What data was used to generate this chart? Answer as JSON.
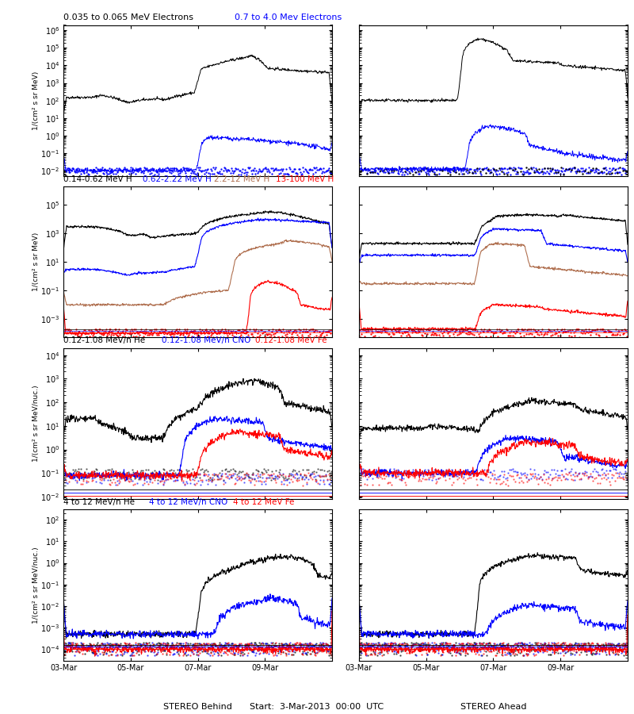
{
  "title_row0": [
    "0.035 to 0.065 MeV Electrons",
    "0.7 to 4.0 Mev Electrons"
  ],
  "title_row0_colors": [
    "black",
    "blue"
  ],
  "title_row1": [
    "0.14-0.62 MeV H",
    "0.62-2.22 MeV H",
    "2.2-12 MeV H",
    "13-100 MeV H"
  ],
  "title_row1_colors": [
    "black",
    "blue",
    "#b07050",
    "red"
  ],
  "title_row2": [
    "0.12-1.08 MeV/n He",
    "0.12-1.08 MeV/n CNO",
    "0.12-1.08 MeV Fe"
  ],
  "title_row2_colors": [
    "black",
    "blue",
    "red"
  ],
  "title_row3": [
    "4 to 12 MeV/n He",
    "4 to 12 MeV/n CNO",
    "4 to 12 MeV Fe"
  ],
  "title_row3_colors": [
    "black",
    "blue",
    "red"
  ],
  "ylabel_electrons": "1/(cm² s sr MeV)",
  "ylabel_protons": "1/(cm² s sr MeV)",
  "ylabel_heavy_low": "1/(cm² s sr MeV/nuc.)",
  "ylabel_heavy_high": "1/(cm² s sr MeV/nuc.)",
  "xlabel_left": "STEREO Behind",
  "xlabel_right": "STEREO Ahead",
  "xlabel_center": "Start:  3-Mar-2013  00:00  UTC",
  "xtick_labels": [
    "03-Mar",
    "05-Mar",
    "07-Mar",
    "09-Mar"
  ],
  "seed": 42
}
